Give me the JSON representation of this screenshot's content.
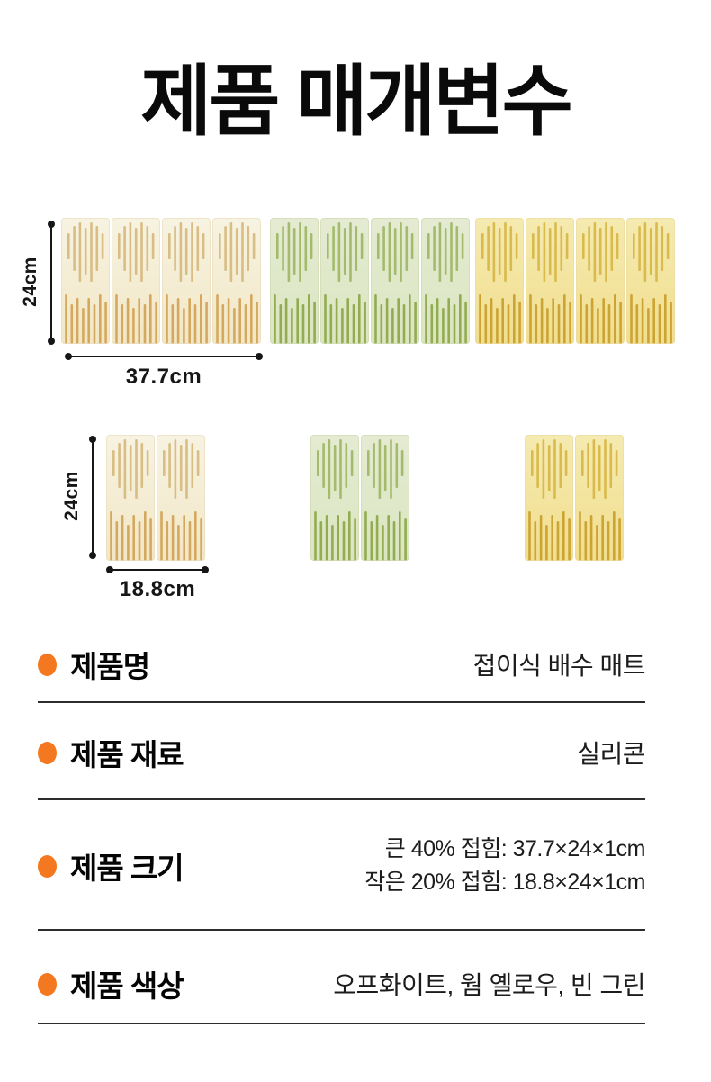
{
  "title": "제품 매개변수",
  "dimensions": {
    "large": {
      "height_label": "24cm",
      "width_label": "37.7cm"
    },
    "small": {
      "height_label": "24cm",
      "width_label": "18.8cm"
    }
  },
  "mats": {
    "large_panels": 4,
    "small_panels": 2,
    "variants": [
      {
        "name": "off-white",
        "panel_top": "#f7f3e2",
        "panel_bottom": "#f2e7c6",
        "slot": "#d8bd84",
        "slot_dark": "#d4a95f"
      },
      {
        "name": "bean-green",
        "panel_top": "#e4ebd2",
        "panel_bottom": "#dbe5c0",
        "slot": "#a4bb6d",
        "slot_dark": "#92ac52"
      },
      {
        "name": "warm-yellow",
        "panel_top": "#f5eab0",
        "panel_bottom": "#f1de8f",
        "slot": "#d9ba4d",
        "slot_dark": "#cba433"
      }
    ]
  },
  "specs": [
    {
      "label": "제품명",
      "value": "접이식 배수 매트"
    },
    {
      "label": "제품 재료",
      "value": "실리콘"
    },
    {
      "label": "제품 크기",
      "value_lines": [
        "큰 40% 접힘: 37.7×24×1cm",
        "작은 20% 접힘: 18.8×24×1cm"
      ]
    },
    {
      "label": "제품 색상",
      "value": "오프화이트, 웜 옐로우, 빈 그린"
    }
  ],
  "colors": {
    "accent_orange": "#F4781F",
    "divider": "#2d2d2d",
    "text": "#111111"
  }
}
